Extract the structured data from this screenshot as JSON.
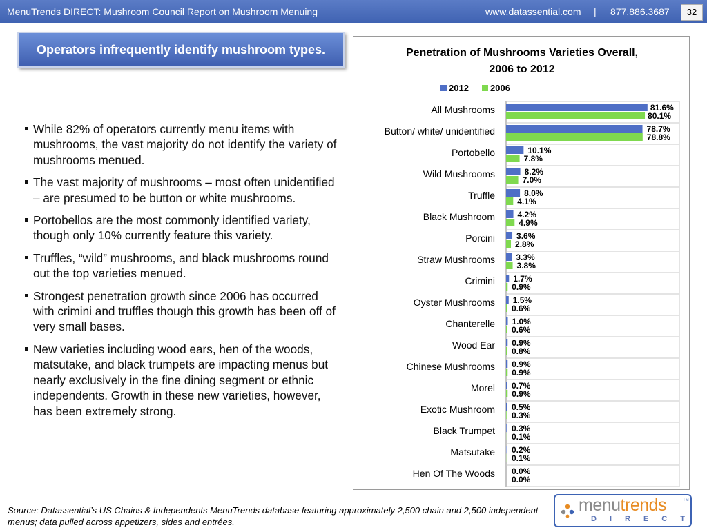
{
  "header": {
    "title": "MenuTrends DIRECT: Mushroom Council Report on Mushroom Menuing",
    "website": "www.datassential.com",
    "separator": "|",
    "phone": "877.886.3687",
    "page_number": "32"
  },
  "headline": "Operators infrequently identify mushroom types.",
  "bullets": [
    "While 82% of operators currently menu items with mushrooms, the vast majority do not identify the variety of mushrooms menued.",
    "The vast majority of mushrooms – most often unidentified – are presumed to be button or white mushrooms.",
    "Portobellos are the most commonly identified variety, though only 10% currently feature this variety.",
    "Truffles, “wild” mushrooms, and black mushrooms round out the top varieties menued.",
    "Strongest penetration growth since 2006 has occurred with crimini and truffles though this growth has been off of very small bases.",
    "New varieties including wood ears, hen of the woods, matsutake, and black trumpets are impacting menus but nearly exclusively in the fine dining segment or ethnic independents.  Growth in these new varieties, however, has been extremely strong."
  ],
  "source_note": "Source: Datassential’s US Chains & Independents MenuTrends database featuring approximately 2,500 chain and 2,500 independent menus; data pulled across appetizers, sides and entrées.",
  "logo": {
    "word_part1": "menu",
    "word_part2": "trends",
    "trademark": "TM",
    "sub": "DIRECT"
  },
  "chart_data": {
    "type": "bar",
    "orientation": "horizontal",
    "title_line1": "Penetration of Mushrooms Varieties Overall,",
    "title_line2": "2006 to 2012",
    "legend_position": "top",
    "categories": [
      "All Mushrooms",
      "Button/ white/ unidentified",
      "Portobello",
      "Wild Mushrooms",
      "Truffle",
      "Black Mushroom",
      "Porcini",
      "Straw Mushrooms",
      "Crimini",
      "Oyster Mushrooms",
      "Chanterelle",
      "Wood Ear",
      "Chinese Mushrooms",
      "Morel",
      "Exotic Mushroom",
      "Black Trumpet",
      "Matsutake",
      "Hen Of The Woods"
    ],
    "series": [
      {
        "name": "2012",
        "color": "#4f6fc6",
        "values": [
          81.6,
          78.7,
          10.1,
          8.2,
          8.0,
          4.2,
          3.6,
          3.3,
          1.7,
          1.5,
          1.0,
          0.9,
          0.9,
          0.7,
          0.5,
          0.3,
          0.2,
          0.0
        ],
        "labels": [
          "81.6%",
          "78.7%",
          "10.1%",
          "8.2%",
          "8.0%",
          "4.2%",
          "3.6%",
          "3.3%",
          "1.7%",
          "1.5%",
          "1.0%",
          "0.9%",
          "0.9%",
          "0.7%",
          "0.5%",
          "0.3%",
          "0.2%",
          "0.0%"
        ]
      },
      {
        "name": "2006",
        "color": "#7fd94f",
        "values": [
          80.1,
          78.8,
          7.8,
          7.0,
          4.1,
          4.9,
          2.8,
          3.8,
          0.9,
          0.6,
          0.6,
          0.8,
          0.9,
          0.9,
          0.3,
          0.1,
          0.1,
          0.0
        ],
        "labels": [
          "80.1%",
          "78.8%",
          "7.8%",
          "7.0%",
          "4.1%",
          "4.9%",
          "2.8%",
          "3.8%",
          "0.9%",
          "0.6%",
          "0.6%",
          "0.8%",
          "0.9%",
          "0.9%",
          "0.3%",
          "0.1%",
          "0.1%",
          "0.0%"
        ]
      }
    ],
    "xlim": [
      0,
      100
    ],
    "grid": true
  }
}
